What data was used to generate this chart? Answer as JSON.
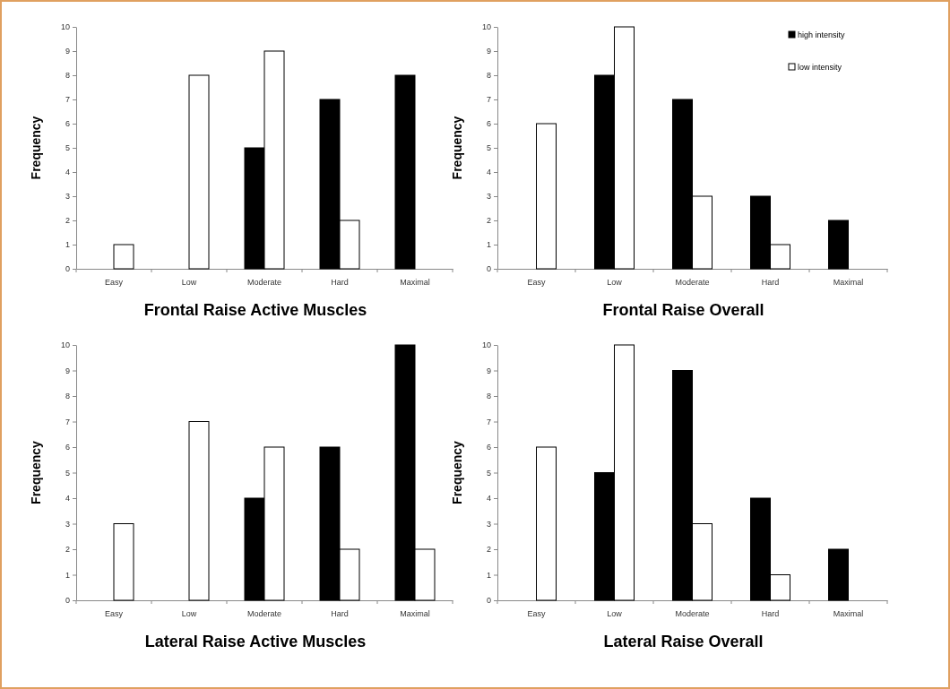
{
  "chart_data": [
    {
      "type": "bar",
      "title": "Frontal Raise Active Muscles",
      "ylabel": "Frequency",
      "categories": [
        "Easy",
        "Low",
        "Moderate",
        "Hard",
        "Maximal"
      ],
      "ylim": [
        0,
        10
      ],
      "yticks": [
        0,
        1,
        2,
        3,
        4,
        5,
        6,
        7,
        8,
        9,
        10
      ],
      "grid": false,
      "legend": false,
      "series": [
        {
          "color": "#000000",
          "values": [
            0,
            0,
            5,
            7,
            8
          ]
        },
        {
          "color": "#ffffff",
          "values": [
            1,
            8,
            9,
            2,
            0
          ]
        }
      ]
    },
    {
      "type": "bar",
      "title": "Frontal Raise Overall",
      "ylabel": "Frequency",
      "categories": [
        "Easy",
        "Low",
        "Moderate",
        "Hard",
        "Maximal"
      ],
      "ylim": [
        0,
        10
      ],
      "yticks": [
        0,
        1,
        2,
        3,
        4,
        5,
        6,
        7,
        8,
        9,
        10
      ],
      "grid": false,
      "legend": "top right",
      "series": [
        {
          "name": "high intensity",
          "color": "#000000",
          "values": [
            0,
            8,
            7,
            3,
            2
          ]
        },
        {
          "name": "low intensity",
          "color": "#ffffff",
          "values": [
            6,
            10,
            3,
            1,
            0
          ]
        }
      ]
    },
    {
      "type": "bar",
      "title": "Lateral Raise Active Muscles",
      "ylabel": "Frequency",
      "categories": [
        "Easy",
        "Low",
        "Moderate",
        "Hard",
        "Maximal"
      ],
      "ylim": [
        0,
        10
      ],
      "yticks": [
        0,
        1,
        2,
        3,
        4,
        5,
        6,
        7,
        8,
        9,
        10
      ],
      "grid": false,
      "legend": false,
      "series": [
        {
          "color": "#000000",
          "values": [
            0,
            0,
            4,
            6,
            10
          ]
        },
        {
          "color": "#ffffff",
          "values": [
            3,
            7,
            6,
            2,
            2
          ]
        }
      ]
    },
    {
      "type": "bar",
      "title": "Lateral Raise Overall",
      "ylabel": "Frequency",
      "categories": [
        "Easy",
        "Low",
        "Moderate",
        "Hard",
        "Maximal"
      ],
      "ylim": [
        0,
        10
      ],
      "yticks": [
        0,
        1,
        2,
        3,
        4,
        5,
        6,
        7,
        8,
        9,
        10
      ],
      "grid": false,
      "legend": false,
      "series": [
        {
          "color": "#000000",
          "values": [
            0,
            5,
            9,
            4,
            2
          ]
        },
        {
          "color": "#ffffff",
          "values": [
            6,
            10,
            3,
            1,
            0
          ]
        }
      ]
    }
  ]
}
